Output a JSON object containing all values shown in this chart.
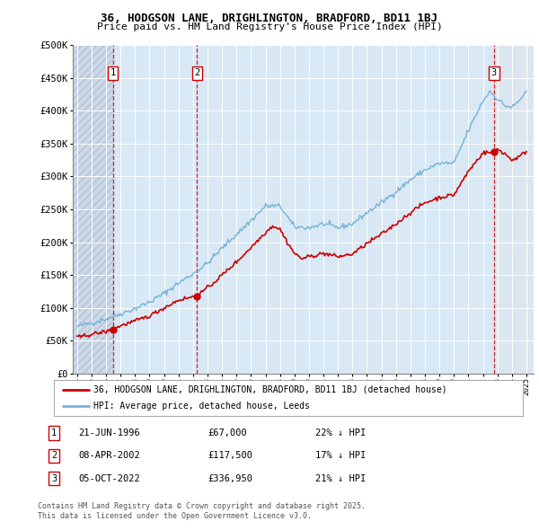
{
  "title": "36, HODGSON LANE, DRIGHLINGTON, BRADFORD, BD11 1BJ",
  "subtitle": "Price paid vs. HM Land Registry's House Price Index (HPI)",
  "background_color": "#ffffff",
  "plot_bg_color": "#dce6f0",
  "hatch_bg_color": "#cdd9e8",
  "grid_color": "#ffffff",
  "ylim": [
    0,
    500000
  ],
  "yticks": [
    0,
    50000,
    100000,
    150000,
    200000,
    250000,
    300000,
    350000,
    400000,
    450000,
    500000
  ],
  "ytick_labels": [
    "£0",
    "£50K",
    "£100K",
    "£150K",
    "£200K",
    "£250K",
    "£300K",
    "£350K",
    "£400K",
    "£450K",
    "£500K"
  ],
  "xlim_start": 1993.7,
  "xlim_end": 2025.5,
  "hatch_end": 1996.47,
  "sale_dates": [
    1996.47,
    2002.27,
    2022.76
  ],
  "sale_prices": [
    67000,
    117500,
    336950
  ],
  "sale_labels": [
    "1",
    "2",
    "3"
  ],
  "hpi_color": "#74b3d8",
  "price_color": "#cc0000",
  "dashed_color": "#cc0000",
  "legend_label_price": "36, HODGSON LANE, DRIGHLINGTON, BRADFORD, BD11 1BJ (detached house)",
  "legend_label_hpi": "HPI: Average price, detached house, Leeds",
  "annotation1_date": "21-JUN-1996",
  "annotation1_price": "£67,000",
  "annotation1_hpi": "22% ↓ HPI",
  "annotation2_date": "08-APR-2002",
  "annotation2_price": "£117,500",
  "annotation2_hpi": "17% ↓ HPI",
  "annotation3_date": "05-OCT-2022",
  "annotation3_price": "£336,950",
  "annotation3_hpi": "21% ↓ HPI",
  "footer": "Contains HM Land Registry data © Crown copyright and database right 2025.\nThis data is licensed under the Open Government Licence v3.0."
}
